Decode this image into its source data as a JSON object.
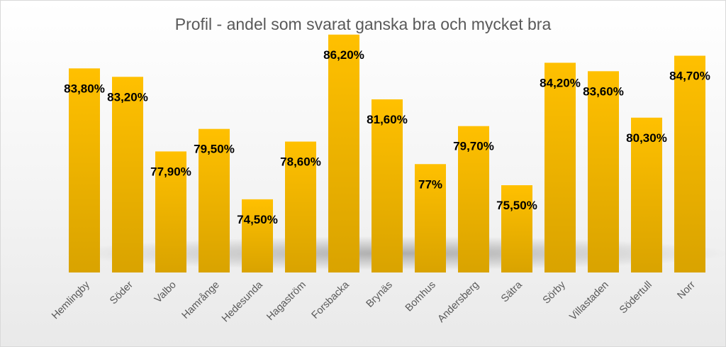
{
  "chart_data": {
    "type": "bar",
    "title": "Profil - andel som svarat ganska bra och mycket bra",
    "categories": [
      "Hemlingby",
      "Söder",
      "Valbo",
      "Hamrånge",
      "Hedesunda",
      "Hagaström",
      "Forsbacka",
      "Brynäs",
      "Bomhus",
      "Andersberg",
      "Sätra",
      "Sörby",
      "Villastaden",
      "Södertull",
      "Norr"
    ],
    "values": [
      83.8,
      83.2,
      77.9,
      79.5,
      74.5,
      78.6,
      86.2,
      81.6,
      77,
      79.7,
      75.5,
      84.2,
      83.6,
      80.3,
      84.7
    ],
    "labels": [
      "83,80%",
      "83,20%",
      "77,90%",
      "79,50%",
      "74,50%",
      "78,60%",
      "86,20%",
      "81,60%",
      "77%",
      "79,70%",
      "75,50%",
      "84,20%",
      "83,60%",
      "80,30%",
      "84,70%"
    ],
    "xlabel": "",
    "ylabel": "",
    "ylim": [
      69.3,
      87.6
    ],
    "grid": false,
    "legend": "none",
    "colors": {
      "bar_top": "#ffc000",
      "bar_bottom": "#d9a300",
      "label": "#000000",
      "title": "#595959",
      "axis_text": "#595959"
    }
  }
}
